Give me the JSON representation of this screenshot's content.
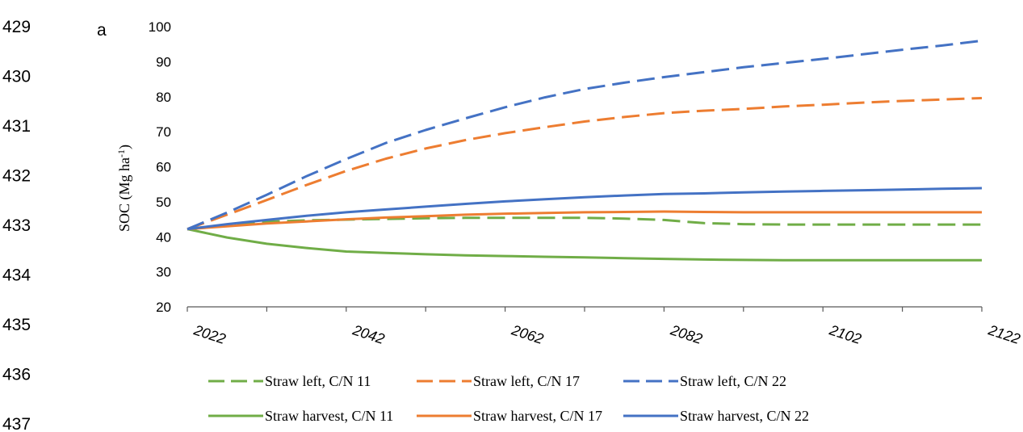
{
  "line_numbers": [
    "429",
    "430",
    "431",
    "432",
    "433",
    "434",
    "435",
    "436",
    "437"
  ],
  "chart_data": {
    "type": "line",
    "panel_label": "a",
    "ylabel": "SOC (Mg ha",
    "ylabel_sup": "-1",
    "ylabel_tail": ")",
    "xlabel": "",
    "ylim": [
      20,
      100
    ],
    "xlim": [
      2022,
      2122
    ],
    "yticks": [
      20,
      30,
      40,
      50,
      60,
      70,
      80,
      90,
      100
    ],
    "xticks_labeled": [
      2022,
      2042,
      2062,
      2082,
      2102,
      2122
    ],
    "xticks_minor": [
      2032,
      2052,
      2072,
      2092,
      2112
    ],
    "grid": false,
    "legend_position": "bottom",
    "series": [
      {
        "name": "Straw left, C/N 11",
        "color": "#70AD47",
        "style": "dashed",
        "x": [
          2022,
          2027,
          2032,
          2037,
          2042,
          2047,
          2052,
          2057,
          2062,
          2067,
          2072,
          2077,
          2082,
          2087,
          2092,
          2097,
          2102,
          2107,
          2112,
          2117,
          2122
        ],
        "y": [
          42.2,
          43.5,
          44.3,
          44.7,
          44.9,
          45.1,
          45.3,
          45.4,
          45.4,
          45.4,
          45.4,
          45.2,
          44.8,
          43.9,
          43.6,
          43.5,
          43.5,
          43.5,
          43.5,
          43.5,
          43.5
        ]
      },
      {
        "name": "Straw left, C/N 17",
        "color": "#ED7D31",
        "style": "dashed",
        "x": [
          2022,
          2027,
          2032,
          2037,
          2042,
          2047,
          2052,
          2057,
          2062,
          2067,
          2072,
          2077,
          2082,
          2087,
          2092,
          2097,
          2102,
          2107,
          2112,
          2117,
          2122
        ],
        "y": [
          42.2,
          46.3,
          50.5,
          54.8,
          58.8,
          62.3,
          65.2,
          67.6,
          69.6,
          71.3,
          72.9,
          74.2,
          75.3,
          76.0,
          76.5,
          77.2,
          77.7,
          78.3,
          78.8,
          79.2,
          79.6
        ]
      },
      {
        "name": "Straw left, C/N 22",
        "color": "#4472C4",
        "style": "dashed",
        "x": [
          2022,
          2027,
          2032,
          2037,
          2042,
          2047,
          2052,
          2057,
          2062,
          2067,
          2072,
          2077,
          2082,
          2087,
          2092,
          2097,
          2102,
          2107,
          2112,
          2117,
          2122
        ],
        "y": [
          42.2,
          46.9,
          52.0,
          57.3,
          62.2,
          66.8,
          70.5,
          73.8,
          77.0,
          79.8,
          82.2,
          84.0,
          85.6,
          87.0,
          88.4,
          89.6,
          90.8,
          92.1,
          93.4,
          94.6,
          96.0
        ]
      },
      {
        "name": "Straw harvest, C/N 11",
        "color": "#70AD47",
        "style": "solid",
        "x": [
          2022,
          2027,
          2032,
          2037,
          2042,
          2047,
          2052,
          2057,
          2062,
          2067,
          2072,
          2077,
          2082,
          2087,
          2092,
          2097,
          2102,
          2107,
          2112,
          2117,
          2122
        ],
        "y": [
          42.2,
          39.8,
          38.0,
          36.8,
          35.8,
          35.4,
          35.0,
          34.7,
          34.5,
          34.3,
          34.1,
          33.9,
          33.7,
          33.5,
          33.4,
          33.3,
          33.3,
          33.3,
          33.3,
          33.3,
          33.3
        ]
      },
      {
        "name": "Straw harvest, C/N 17",
        "color": "#ED7D31",
        "style": "solid",
        "x": [
          2022,
          2027,
          2032,
          2037,
          2042,
          2047,
          2052,
          2057,
          2062,
          2067,
          2072,
          2077,
          2082,
          2087,
          2092,
          2097,
          2102,
          2107,
          2112,
          2117,
          2122
        ],
        "y": [
          42.2,
          43.0,
          43.8,
          44.4,
          45.0,
          45.5,
          45.9,
          46.3,
          46.6,
          46.8,
          47.0,
          47.1,
          47.2,
          47.1,
          47.0,
          47.0,
          47.0,
          47.0,
          47.0,
          47.0,
          47.0
        ]
      },
      {
        "name": "Straw harvest, C/N 22",
        "color": "#4472C4",
        "style": "solid",
        "x": [
          2022,
          2027,
          2032,
          2037,
          2042,
          2047,
          2052,
          2057,
          2062,
          2067,
          2072,
          2077,
          2082,
          2087,
          2092,
          2097,
          2102,
          2107,
          2112,
          2117,
          2122
        ],
        "y": [
          42.2,
          43.6,
          44.8,
          46.0,
          47.0,
          47.8,
          48.6,
          49.4,
          50.1,
          50.7,
          51.3,
          51.8,
          52.2,
          52.4,
          52.7,
          52.9,
          53.1,
          53.3,
          53.5,
          53.7,
          53.9
        ]
      }
    ]
  }
}
